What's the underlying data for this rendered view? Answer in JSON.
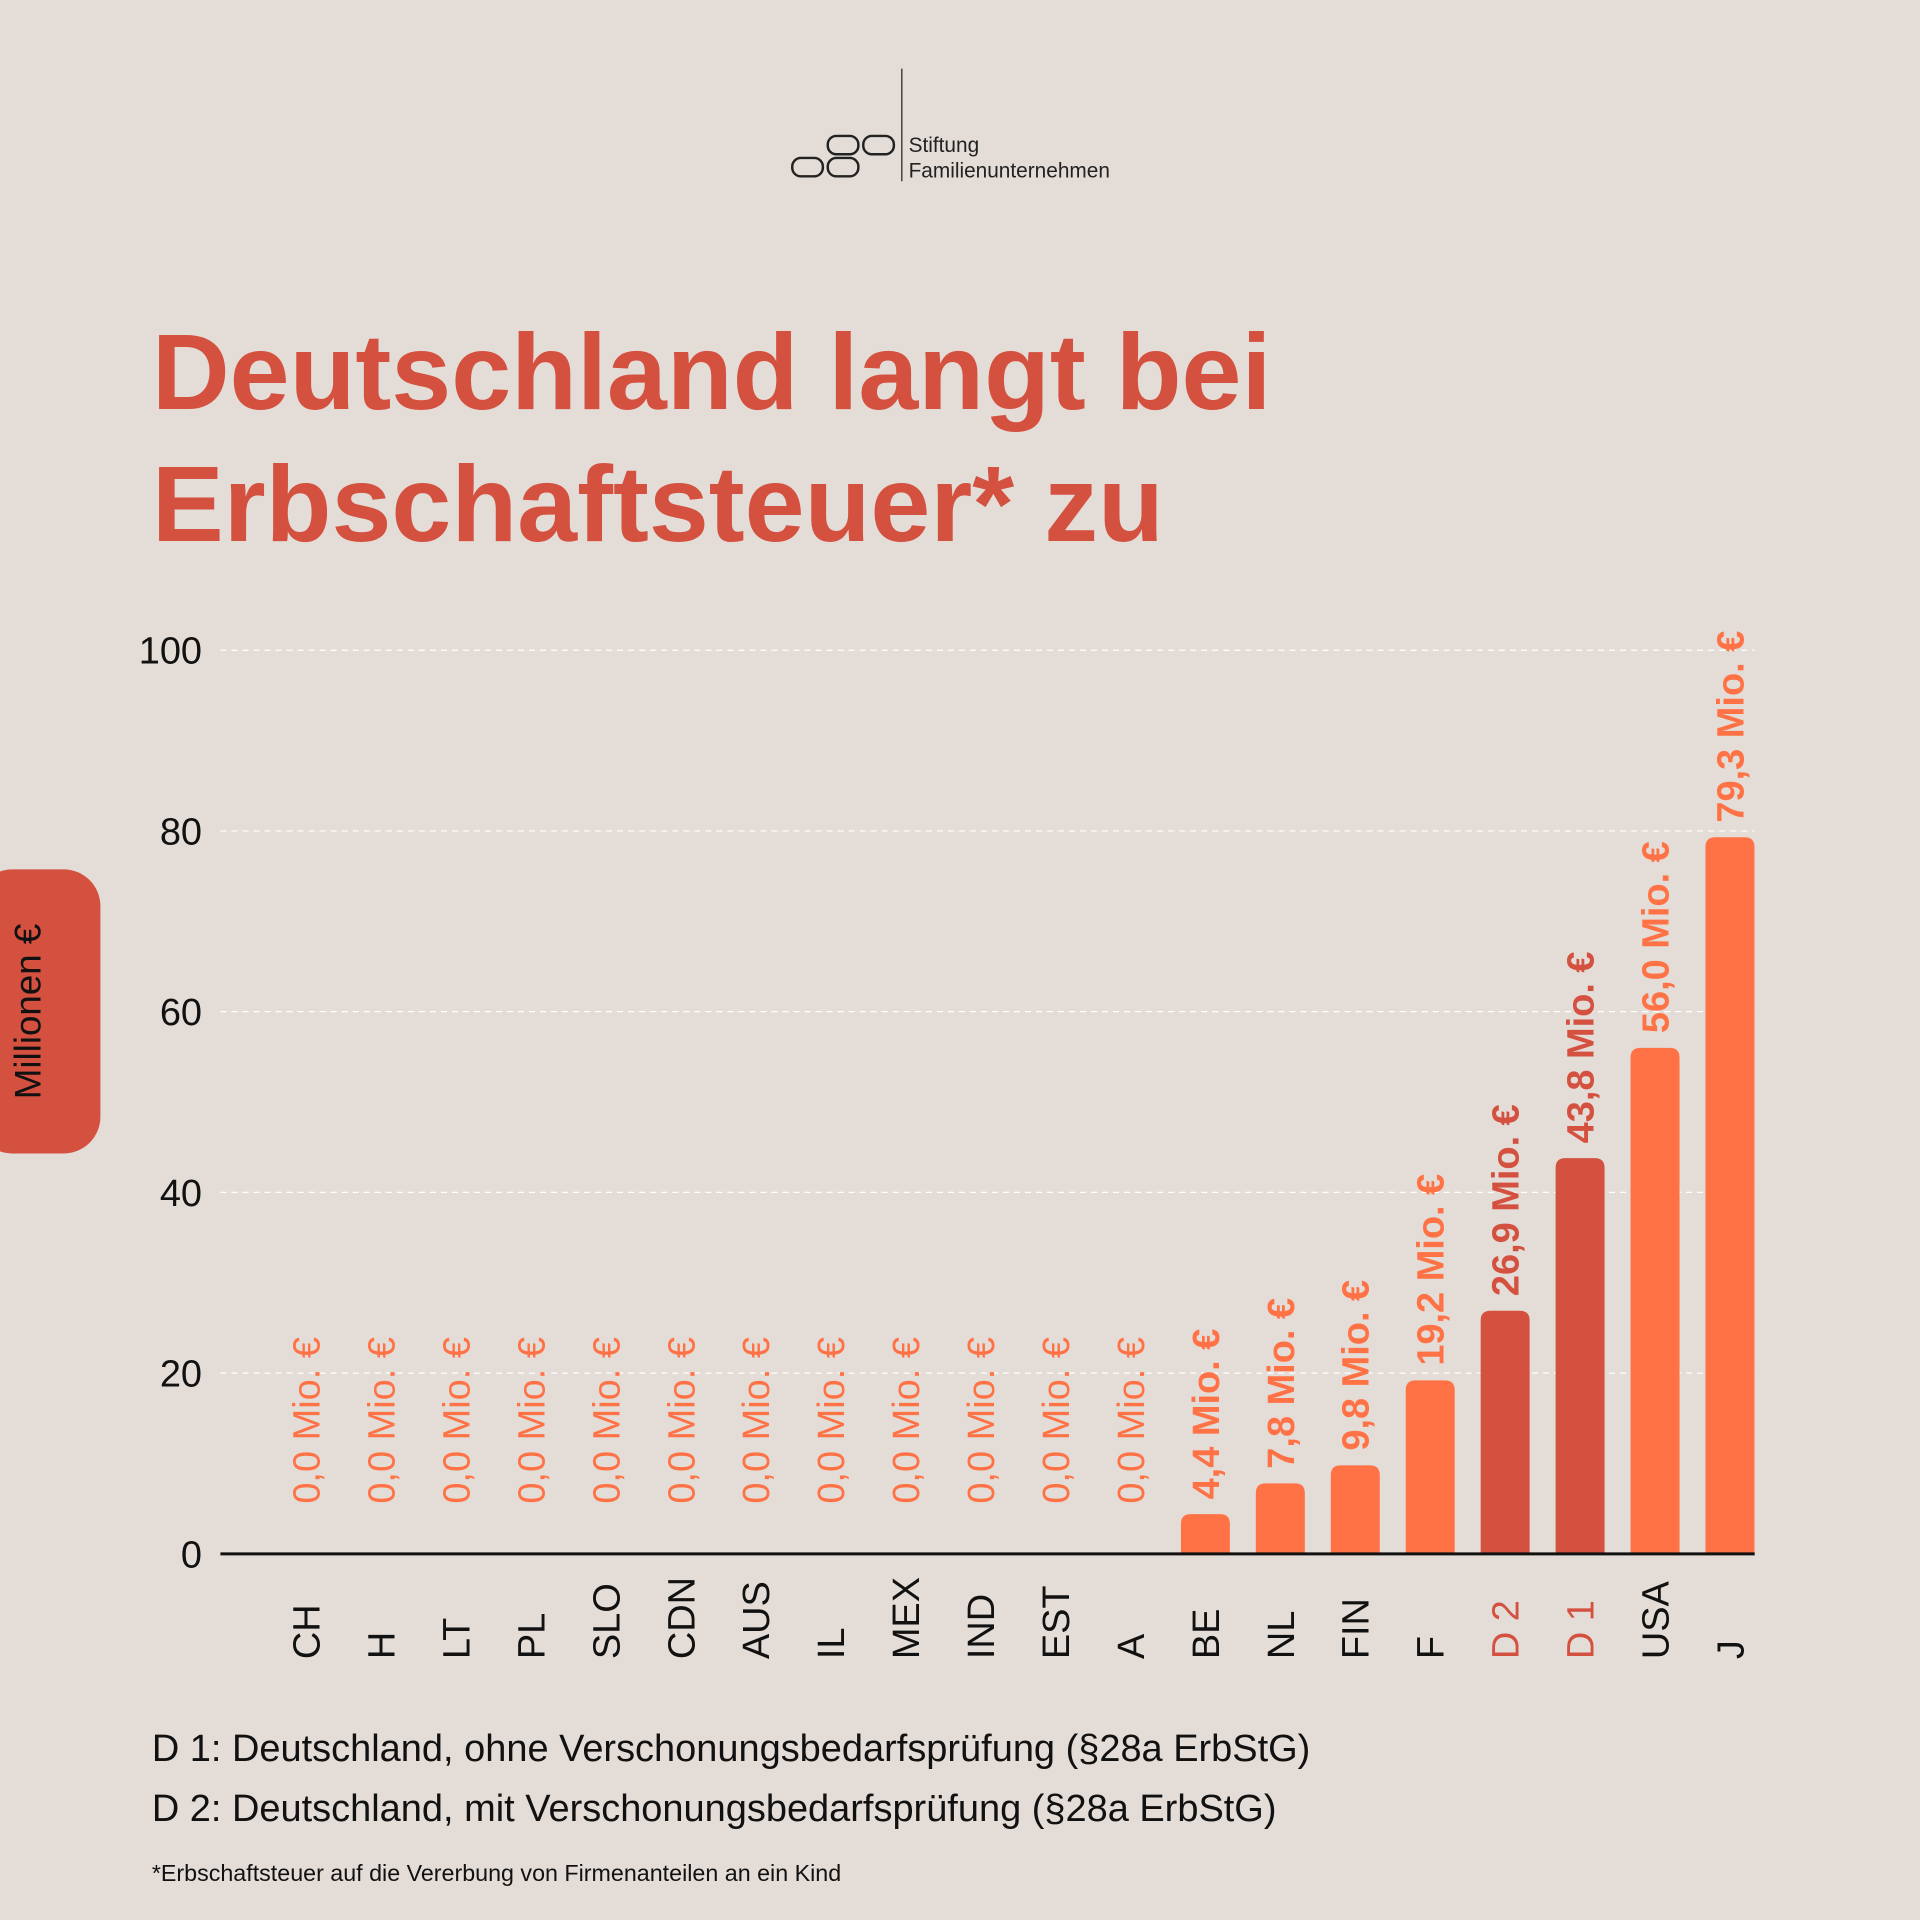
{
  "logo": {
    "line1": "Stiftung",
    "line2": "Familienunternehmen"
  },
  "title": {
    "line1": "Deutschland langt bei",
    "line2": "Erbschaftsteuer* zu"
  },
  "colors": {
    "background": "#E3DCD7",
    "accent": "#FF7245",
    "germany": "#D4503F"
  },
  "chart_data": {
    "type": "bar",
    "ylabel": "Millionen €",
    "ylim": [
      0,
      100
    ],
    "yticks": [
      0,
      20,
      40,
      60,
      80,
      100
    ],
    "grid": true,
    "categories": [
      "CH",
      "H",
      "LT",
      "PL",
      "SLO",
      "CDN",
      "AUS",
      "IL",
      "MEX",
      "IND",
      "EST",
      "A",
      "BE",
      "NL",
      "FIN",
      "F",
      "D 2",
      "D 1",
      "USA",
      "J"
    ],
    "values": [
      0,
      0,
      0,
      0,
      0,
      0,
      0,
      0,
      0,
      0,
      0,
      0,
      4.4,
      7.8,
      9.8,
      19.2,
      26.9,
      43.8,
      56.0,
      79.3
    ],
    "labels": [
      "0,0 Mio. €",
      "0,0 Mio. €",
      "0,0 Mio. €",
      "0,0 Mio. €",
      "0,0 Mio. €",
      "0,0 Mio. €",
      "0,0 Mio. €",
      "0,0 Mio. €",
      "0,0 Mio. €",
      "0,0 Mio. €",
      "0,0 Mio. €",
      "0,0 Mio. €",
      "4,4 Mio. €",
      "7,8 Mio. €",
      "9,8 Mio. €",
      "19,2 Mio. €",
      "26,9 Mio. €",
      "43,8 Mio. €",
      "56,0 Mio. €",
      "79,3 Mio. €"
    ],
    "highlight": [
      "D 2",
      "D 1"
    ]
  },
  "notes": {
    "d1": "D 1: Deutschland, ohne Verschonungsbedarfsprüfung (§28a ErbStG)",
    "d2": "D 2: Deutschland, mit Verschonungsbedarfsprüfung (§28a ErbStG)",
    "footnote": "*Erbschaftsteuer auf die Vererbung von Firmenanteilen an ein Kind"
  }
}
